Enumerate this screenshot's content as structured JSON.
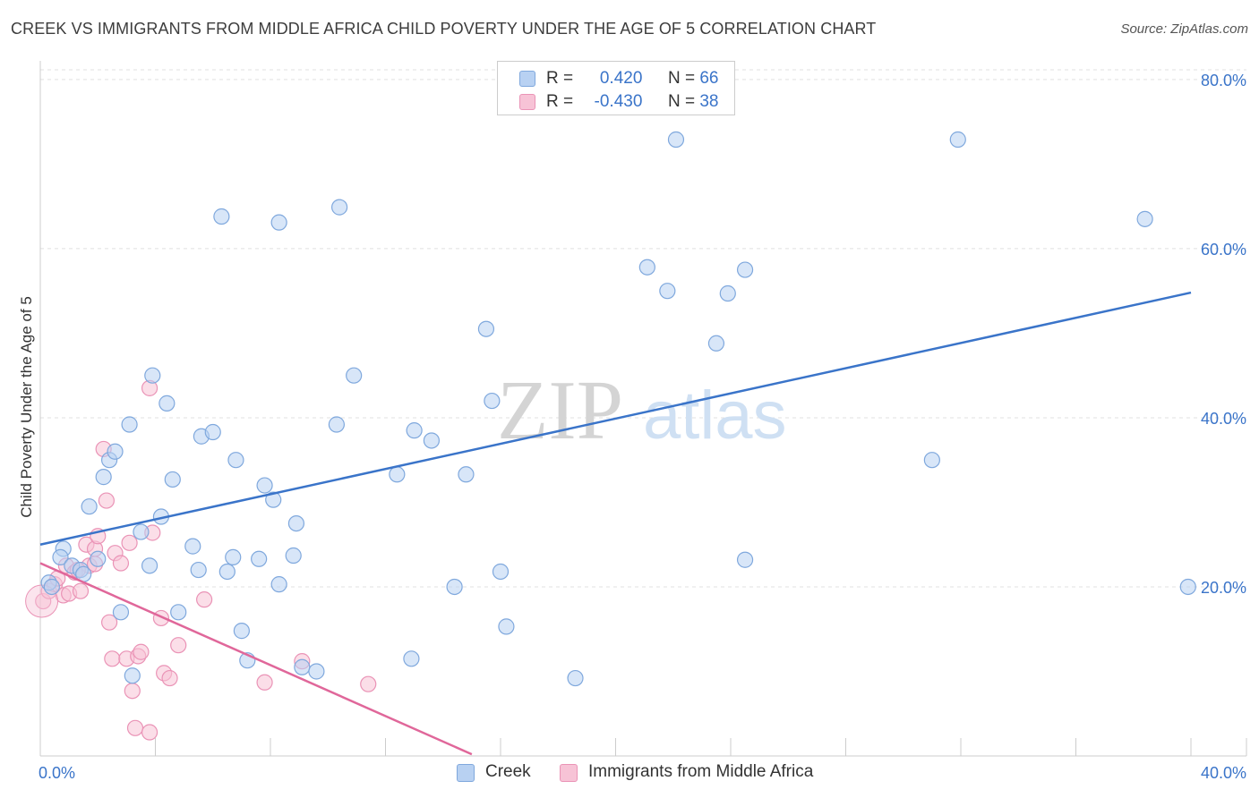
{
  "title": "CREEK VS IMMIGRANTS FROM MIDDLE AFRICA CHILD POVERTY UNDER THE AGE OF 5 CORRELATION CHART",
  "source": "Source: ZipAtlas.com",
  "watermark": {
    "zip": "ZIP",
    "atlas": "atlas"
  },
  "colors": {
    "blue": "#3a74c9",
    "blue_fill": "#b8d1f2",
    "blue_stroke": "#7fa8dd",
    "pink": "#e0679a",
    "pink_fill": "#f7c3d6",
    "pink_stroke": "#ea93b6",
    "grid": "#e0e0e0",
    "tick_label": "#3a74c9"
  },
  "legend": {
    "rows": [
      {
        "r_label": "R =",
        "r_value": "0.420",
        "n_label": "N =",
        "n_value": "66"
      },
      {
        "r_label": "R =",
        "r_value": "-0.430",
        "n_label": "N =",
        "n_value": "38"
      }
    ]
  },
  "bottom_legend": {
    "creek": "Creek",
    "immigrants": "Immigrants from Middle Africa"
  },
  "chart_data": {
    "type": "scatter",
    "title": "CREEK VS IMMIGRANTS FROM MIDDLE AFRICA CHILD POVERTY UNDER THE AGE OF 5 CORRELATION CHART",
    "xlabel": "",
    "ylabel": "Child Poverty Under the Age of 5",
    "xlim": [
      0,
      40
    ],
    "ylim": [
      0,
      82
    ],
    "x_tick_labels": [
      "0.0%",
      "40.0%"
    ],
    "y_ticks": [
      20,
      40,
      60,
      80
    ],
    "y_tick_labels": [
      "20.0%",
      "40.0%",
      "60.0%",
      "80.0%"
    ],
    "grid": true,
    "legend_position": "top-center",
    "series": [
      {
        "name": "Creek",
        "color": "#3a74c9",
        "r": 0.42,
        "n": 66,
        "trend": {
          "x": [
            0,
            40
          ],
          "y": [
            25.0,
            54.8
          ]
        },
        "points": [
          [
            0.8,
            24.5
          ],
          [
            0.7,
            23.5
          ],
          [
            1.1,
            22.5
          ],
          [
            1.4,
            22.0
          ],
          [
            0.3,
            20.5
          ],
          [
            0.4,
            20.0
          ],
          [
            1.5,
            21.5
          ],
          [
            2.0,
            23.3
          ],
          [
            1.7,
            29.5
          ],
          [
            2.2,
            33.0
          ],
          [
            2.4,
            35.0
          ],
          [
            2.6,
            36.0
          ],
          [
            3.1,
            39.2
          ],
          [
            3.9,
            45.0
          ],
          [
            4.4,
            41.7
          ],
          [
            3.5,
            26.5
          ],
          [
            4.2,
            28.3
          ],
          [
            4.6,
            32.7
          ],
          [
            3.8,
            22.5
          ],
          [
            5.3,
            24.8
          ],
          [
            5.5,
            22.0
          ],
          [
            5.6,
            37.8
          ],
          [
            6.0,
            38.3
          ],
          [
            6.3,
            63.8
          ],
          [
            6.5,
            21.8
          ],
          [
            6.7,
            23.5
          ],
          [
            6.8,
            35.0
          ],
          [
            7.6,
            23.3
          ],
          [
            7.8,
            32.0
          ],
          [
            8.1,
            30.3
          ],
          [
            8.3,
            20.3
          ],
          [
            8.3,
            63.1
          ],
          [
            8.8,
            23.7
          ],
          [
            8.9,
            27.5
          ],
          [
            10.3,
            39.2
          ],
          [
            10.4,
            64.9
          ],
          [
            10.9,
            45.0
          ],
          [
            12.4,
            33.3
          ],
          [
            13.0,
            38.5
          ],
          [
            13.6,
            37.3
          ],
          [
            14.4,
            20.0
          ],
          [
            14.8,
            33.3
          ],
          [
            15.5,
            50.5
          ],
          [
            15.7,
            42.0
          ],
          [
            16.0,
            21.8
          ],
          [
            16.2,
            15.3
          ],
          [
            2.8,
            17.0
          ],
          [
            4.8,
            17.0
          ],
          [
            7.0,
            14.8
          ],
          [
            7.2,
            11.3
          ],
          [
            9.1,
            10.5
          ],
          [
            9.6,
            10.0
          ],
          [
            12.9,
            11.5
          ],
          [
            3.2,
            9.5
          ],
          [
            18.6,
            9.2
          ],
          [
            21.1,
            57.8
          ],
          [
            21.8,
            55.0
          ],
          [
            22.1,
            72.9
          ],
          [
            23.5,
            48.8
          ],
          [
            23.9,
            54.7
          ],
          [
            24.5,
            57.5
          ],
          [
            24.5,
            23.2
          ],
          [
            31.0,
            35.0
          ],
          [
            31.9,
            72.9
          ],
          [
            38.4,
            63.5
          ],
          [
            39.9,
            20.0
          ]
        ]
      },
      {
        "name": "Immigrants from Middle Africa",
        "color": "#e0679a",
        "r": -0.43,
        "n": 38,
        "trend": {
          "x": [
            0,
            15.0
          ],
          "y": [
            22.8,
            0.2
          ]
        },
        "points": [
          [
            0.1,
            18.3
          ],
          [
            0.3,
            19.5
          ],
          [
            0.5,
            20.3
          ],
          [
            0.8,
            19.0
          ],
          [
            0.9,
            22.5
          ],
          [
            1.0,
            19.2
          ],
          [
            1.2,
            21.7
          ],
          [
            1.4,
            19.5
          ],
          [
            1.6,
            25.0
          ],
          [
            1.7,
            22.5
          ],
          [
            1.9,
            22.7
          ],
          [
            1.9,
            24.5
          ],
          [
            2.0,
            26.0
          ],
          [
            2.2,
            36.3
          ],
          [
            2.3,
            30.2
          ],
          [
            2.4,
            15.8
          ],
          [
            2.5,
            11.5
          ],
          [
            2.6,
            24.0
          ],
          [
            2.8,
            22.8
          ],
          [
            3.0,
            11.5
          ],
          [
            3.1,
            25.2
          ],
          [
            3.2,
            7.7
          ],
          [
            3.3,
            3.3
          ],
          [
            3.4,
            11.8
          ],
          [
            3.5,
            12.3
          ],
          [
            3.8,
            43.5
          ],
          [
            3.8,
            2.8
          ],
          [
            3.9,
            26.4
          ],
          [
            4.2,
            16.3
          ],
          [
            4.3,
            9.8
          ],
          [
            4.5,
            9.2
          ],
          [
            4.8,
            13.1
          ],
          [
            5.7,
            18.5
          ],
          [
            7.8,
            8.7
          ],
          [
            9.1,
            11.2
          ],
          [
            11.4,
            8.5
          ],
          [
            1.3,
            22.0
          ],
          [
            0.6,
            21.0
          ]
        ]
      }
    ]
  }
}
